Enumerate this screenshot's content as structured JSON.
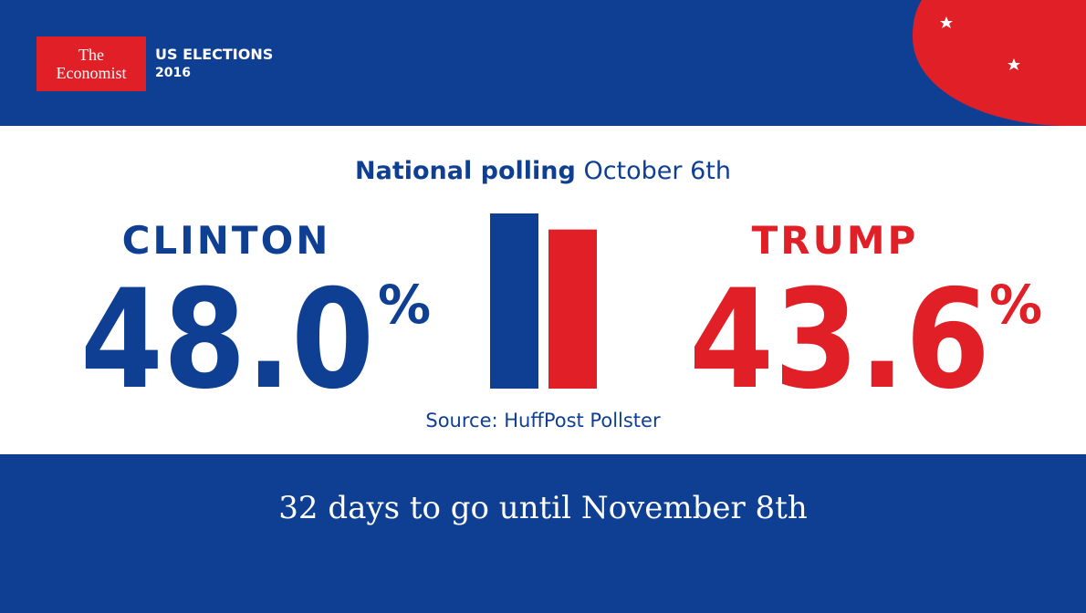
{
  "header": {
    "brand_line1": "The",
    "brand_line2": "Economist",
    "section_line1": "US ELECTIONS",
    "section_line2": "2016"
  },
  "chart_data": {
    "type": "bar",
    "title": "National polling",
    "subtitle": "October 6th",
    "categories": [
      "CLINTON",
      "TRUMP"
    ],
    "values": [
      48.0,
      43.6
    ],
    "value_labels": [
      "48.0",
      "43.6"
    ],
    "value_unit": "%",
    "colors": [
      "#0e3f93",
      "#e01f26"
    ],
    "source": "Source: HuffPost Pollster"
  },
  "footer": {
    "text": "32 days to go until November 8th"
  }
}
